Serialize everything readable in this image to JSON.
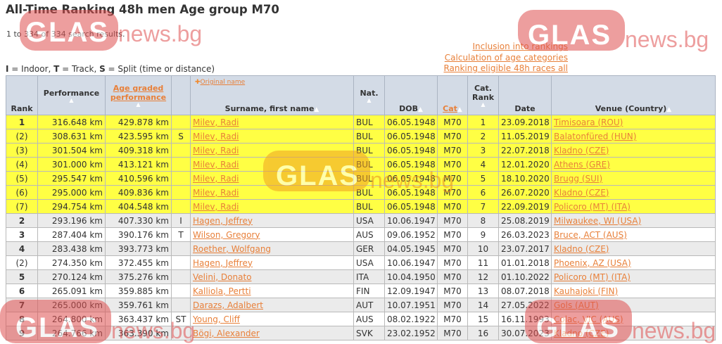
{
  "title": "All-Time Ranking 48h men Age group M70",
  "results_text": "1 to 334 of 334 search results.",
  "legend": [
    {
      "key": "I",
      "text": " = Indoor, "
    },
    {
      "key": "T",
      "text": " = Track, "
    },
    {
      "key": "S",
      "text": " = Split (time or distance)"
    }
  ],
  "links": [
    "Inclusion into rankings",
    "Calculation of age categories",
    "Ranking eligible 48h races all"
  ],
  "headers": {
    "rank": "Rank",
    "performance": "Performance",
    "age_graded": "Age graded performance",
    "original_name": "Original name",
    "name": "Surname, first name",
    "nat": "Nat.",
    "dob": "DOB",
    "cat": "Cat",
    "cat_rank": "Cat. Rank",
    "date": "Date",
    "venue": "Venue (Country)"
  },
  "colors": {
    "highlight": "#ffff44",
    "link": "#e8803a",
    "header_bg": "#d3dbe6",
    "row_alt": "#ebebeb"
  },
  "watermark": "GLASnews.bg",
  "rows": [
    {
      "rank": "1",
      "perf": "316.648 km",
      "ag": "429.878 km",
      "note": "",
      "name": "Milev, Radi",
      "nat": "BUL",
      "dob": "06.05.1948",
      "cat": "M70",
      "catrank": "1",
      "date": "23.09.2018",
      "venue": "Timisoara (ROU)",
      "highlight": true
    },
    {
      "rank": "(2)",
      "perf": "308.631 km",
      "ag": "423.595 km",
      "note": "S",
      "name": "Milev, Radi",
      "nat": "BUL",
      "dob": "06.05.1948",
      "cat": "M70",
      "catrank": "2",
      "date": "11.05.2019",
      "venue": "Balatonfüred (HUN)",
      "highlight": true
    },
    {
      "rank": "(3)",
      "perf": "301.504 km",
      "ag": "409.318 km",
      "note": "",
      "name": "Milev, Radi",
      "nat": "BUL",
      "dob": "06.05.1948",
      "cat": "M70",
      "catrank": "3",
      "date": "22.07.2018",
      "venue": "Kladno (CZE)",
      "highlight": true
    },
    {
      "rank": "(4)",
      "perf": "301.000 km",
      "ag": "413.121 km",
      "note": "",
      "name": "Milev, Radi",
      "nat": "BUL",
      "dob": "06.05.1948",
      "cat": "M70",
      "catrank": "4",
      "date": "12.01.2020",
      "venue": "Athens (GRE)",
      "highlight": true
    },
    {
      "rank": "(5)",
      "perf": "295.547 km",
      "ag": "410.596 km",
      "note": "",
      "name": "Milev, Radi",
      "nat": "BUL",
      "dob": "06.05.1948",
      "cat": "M70",
      "catrank": "5",
      "date": "18.10.2020",
      "venue": "Brugg (SUI)",
      "highlight": true
    },
    {
      "rank": "(6)",
      "perf": "295.000 km",
      "ag": "409.836 km",
      "note": "",
      "name": "Milev, Radi",
      "nat": "BUL",
      "dob": "06.05.1948",
      "cat": "M70",
      "catrank": "6",
      "date": "26.07.2020",
      "venue": "Kladno (CZE)",
      "highlight": true
    },
    {
      "rank": "(7)",
      "perf": "294.754 km",
      "ag": "404.548 km",
      "note": "",
      "name": "Milev, Radi",
      "nat": "BUL",
      "dob": "06.05.1948",
      "cat": "M70",
      "catrank": "7",
      "date": "22.09.2019",
      "venue": "Policoro (MT) (ITA)",
      "highlight": true
    },
    {
      "rank": "2",
      "perf": "293.196 km",
      "ag": "407.330 km",
      "note": "I",
      "name": "Hagen, Jeffrey",
      "nat": "USA",
      "dob": "10.06.1947",
      "cat": "M70",
      "catrank": "8",
      "date": "25.08.2019",
      "venue": "Milwaukee, WI (USA)",
      "highlight": false
    },
    {
      "rank": "3",
      "perf": "287.404 km",
      "ag": "390.176 km",
      "note": "T",
      "name": "Wilson, Gregory",
      "nat": "AUS",
      "dob": "09.06.1952",
      "cat": "M70",
      "catrank": "9",
      "date": "26.03.2023",
      "venue": "Bruce, ACT (AUS)",
      "highlight": false
    },
    {
      "rank": "4",
      "perf": "283.438 km",
      "ag": "393.773 km",
      "note": "",
      "name": "Roether, Wolfgang",
      "nat": "GER",
      "dob": "04.05.1945",
      "cat": "M70",
      "catrank": "10",
      "date": "23.07.2017",
      "venue": "Kladno (CZE)",
      "highlight": false
    },
    {
      "rank": "(2)",
      "perf": "274.350 km",
      "ag": "372.455 km",
      "note": "",
      "name": "Hagen, Jeffrey",
      "nat": "USA",
      "dob": "10.06.1947",
      "cat": "M70",
      "catrank": "11",
      "date": "01.01.2018",
      "venue": "Phoenix, AZ (USA)",
      "highlight": false
    },
    {
      "rank": "5",
      "perf": "270.124 km",
      "ag": "375.276 km",
      "note": "",
      "name": "Velini, Donato",
      "nat": "ITA",
      "dob": "10.04.1950",
      "cat": "M70",
      "catrank": "12",
      "date": "01.10.2022",
      "venue": "Policoro (MT) (ITA)",
      "highlight": false
    },
    {
      "rank": "6",
      "perf": "265.091 km",
      "ag": "359.885 km",
      "note": "",
      "name": "Kalliola, Pertti",
      "nat": "FIN",
      "dob": "12.09.1947",
      "cat": "M70",
      "catrank": "13",
      "date": "08.07.2018",
      "venue": "Kauhajoki (FIN)",
      "highlight": false
    },
    {
      "rank": "7",
      "perf": "265.000 km",
      "ag": "359.761 km",
      "note": "",
      "name": "Darazs, Adalbert",
      "nat": "AUT",
      "dob": "10.07.1951",
      "cat": "M70",
      "catrank": "14",
      "date": "27.05.2022",
      "venue": "Gols (AUT)",
      "highlight": false
    },
    {
      "rank": "8",
      "perf": "264.800 km",
      "ag": "363.437 km",
      "note": "ST",
      "name": "Young, Cliff",
      "nat": "AUS",
      "dob": "08.02.1922",
      "cat": "M70",
      "catrank": "15",
      "date": "16.11.1993",
      "venue": "Colac, VIC (AUS)",
      "highlight": false
    },
    {
      "rank": "9",
      "perf": "264.766 km",
      "ag": "363.390 km",
      "note": "",
      "name": "Bögi, Alexander",
      "nat": "SVK",
      "dob": "23.02.1952",
      "cat": "M70",
      "catrank": "16",
      "date": "30.07.2023",
      "venue": "Kladno (CZE)",
      "highlight": false
    }
  ]
}
